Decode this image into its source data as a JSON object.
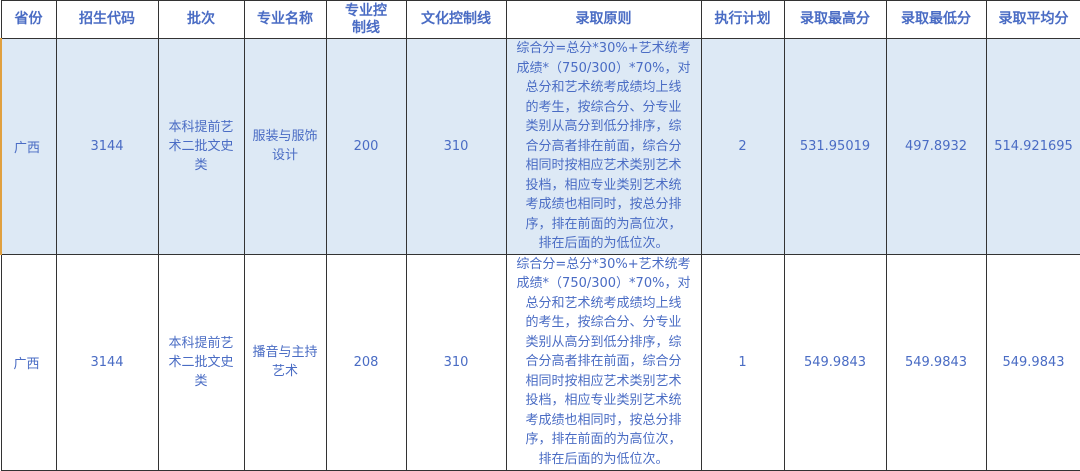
{
  "headers": [
    "省份",
    "招生代码",
    "批次",
    "专业名称",
    "专业控制线",
    "文化控制线",
    "录取原则",
    "执行计划",
    "录取最高分",
    "录取最低分",
    "录取平均分"
  ],
  "rows": [
    {
      "province": "广西",
      "code": "3144",
      "batch": "本科提前艺术二批文史类",
      "major": "服装与服饰设计",
      "major_line": "200",
      "culture_line": "310",
      "rule": [
        "综合分=总分*30%+艺术统考",
        "成绩*（750/300）*70%，对",
        "总分和艺术统考成绩均上线",
        "的考生，按综合分、分专业",
        "类别从高分到低分排序，综",
        "合分高者排在前面，综合分",
        "相同时按相应艺术类别艺术",
        "投档，相应专业类别艺术统",
        "考成绩也相同时，按总分排",
        "序，排在前面的为高位次，",
        "排在后面的为低位次。"
      ],
      "plan": "2",
      "max": "531.95019",
      "min": "497.8932",
      "avg": "514.921695"
    },
    {
      "province": "广西",
      "code": "3144",
      "batch": "本科提前艺术二批文史类",
      "major": "播音与主持艺术",
      "major_line": "208",
      "culture_line": "310",
      "rule": [
        "综合分=总分*30%+艺术统考",
        "成绩*（750/300）*70%，对",
        "总分和艺术统考成绩均上线",
        "的考生，按综合分、分专业",
        "类别从高分到低分排序，综",
        "合分高者排在前面，综合分",
        "相同时按相应艺术类别艺术",
        "投档，相应专业类别艺术统",
        "考成绩也相同时，按总分排",
        "序，排在前面的为高位次，",
        "排在后面的为低位次。"
      ],
      "plan": "1",
      "max": "549.9843",
      "min": "549.9843",
      "avg": "549.9843"
    }
  ]
}
